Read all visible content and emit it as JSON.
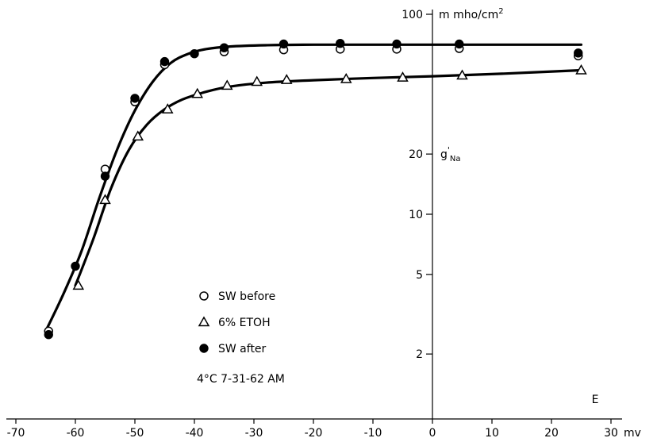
{
  "chart_data": {
    "type": "scatter",
    "x_axis": {
      "range": [
        -70,
        30
      ],
      "ticks": [
        -70,
        -60,
        -50,
        -40,
        -30,
        -20,
        -10,
        0,
        10,
        20,
        30
      ],
      "tick_labels": [
        "-70",
        "-60",
        "-50",
        "-40",
        "-30",
        "-20",
        "-10",
        "0",
        "10",
        "20",
        "30"
      ],
      "unit_label": "mv",
      "name_label": "E"
    },
    "y_axis": {
      "scale": "log",
      "range": [
        1.2,
        100
      ],
      "ticks": [
        2,
        5,
        10,
        20,
        100
      ],
      "tick_labels": [
        "2",
        "5",
        "10",
        "20",
        "100"
      ],
      "unit_label": "m mho/cm",
      "unit_superscript": "2",
      "quantity_label": "g",
      "quantity_prime": "'",
      "quantity_subscript": "Na"
    },
    "series": [
      {
        "name": "SW before",
        "marker": "open-circle",
        "points": [
          [
            -64.5,
            2.6
          ],
          [
            -55,
            16.8
          ],
          [
            -50,
            36.5
          ],
          [
            -45,
            56
          ],
          [
            -35,
            65
          ],
          [
            -25,
            66.5
          ],
          [
            -15.5,
            67
          ],
          [
            -6,
            67
          ],
          [
            4.5,
            67.5
          ],
          [
            24.5,
            62
          ]
        ]
      },
      {
        "name": "6% ETOH",
        "marker": "open-triangle",
        "points": [
          [
            -59.5,
            4.4
          ],
          [
            -55,
            11.8
          ],
          [
            -49.5,
            24.5
          ],
          [
            -44.5,
            33.5
          ],
          [
            -39.5,
            40
          ],
          [
            -34.5,
            44
          ],
          [
            -29.5,
            46
          ],
          [
            -24.5,
            47
          ],
          [
            -14.5,
            47.5
          ],
          [
            -5,
            48.3
          ],
          [
            5,
            49.5
          ],
          [
            25,
            52.5
          ]
        ]
      },
      {
        "name": "SW after",
        "marker": "filled-circle",
        "points": [
          [
            -64.5,
            2.5
          ],
          [
            -60,
            5.5
          ],
          [
            -55,
            15.5
          ],
          [
            -50,
            38
          ],
          [
            -45,
            58
          ],
          [
            -40,
            63.5
          ],
          [
            -35,
            68
          ],
          [
            -25,
            71
          ],
          [
            -15.5,
            71.5
          ],
          [
            -6,
            71
          ],
          [
            4.5,
            71
          ],
          [
            24.5,
            64
          ]
        ]
      }
    ],
    "curves": [
      {
        "for": "SW before / SW after",
        "points": [
          [
            -65,
            2.6
          ],
          [
            -62,
            4
          ],
          [
            -59,
            6.5
          ],
          [
            -56,
            12
          ],
          [
            -53,
            21
          ],
          [
            -50,
            33
          ],
          [
            -47,
            46
          ],
          [
            -44,
            57
          ],
          [
            -41,
            63.5
          ],
          [
            -38,
            67
          ],
          [
            -34,
            69
          ],
          [
            -28,
            70
          ],
          [
            -20,
            70.5
          ],
          [
            0,
            70.5
          ],
          [
            25,
            70.5
          ]
        ]
      },
      {
        "for": "6% ETOH",
        "points": [
          [
            -60,
            4.4
          ],
          [
            -57,
            7.5
          ],
          [
            -54,
            13.5
          ],
          [
            -51,
            21
          ],
          [
            -48,
            28
          ],
          [
            -45,
            33.5
          ],
          [
            -42,
            37.5
          ],
          [
            -38,
            41
          ],
          [
            -34,
            43.5
          ],
          [
            -28,
            45.5
          ],
          [
            -20,
            46.8
          ],
          [
            -10,
            48
          ],
          [
            0,
            49
          ],
          [
            12,
            50.5
          ],
          [
            25,
            52.5
          ]
        ]
      }
    ],
    "legend": {
      "placement": "center-left",
      "items": [
        "SW before",
        "6% ETOH",
        "SW after"
      ],
      "note": "4°C   7-31-62 AM"
    },
    "grid": false
  }
}
